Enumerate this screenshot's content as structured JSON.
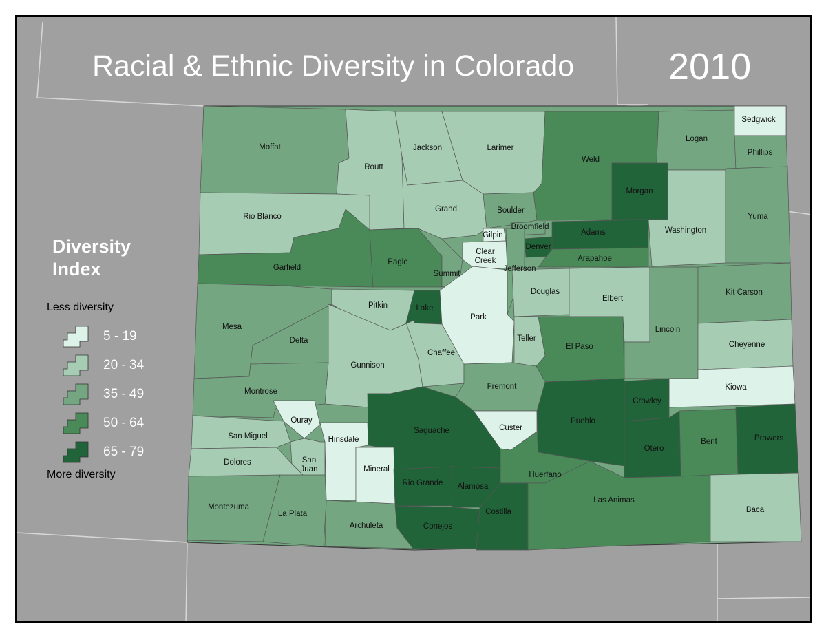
{
  "title": "Racial & Ethnic Diversity in Colorado",
  "year": "2010",
  "legend": {
    "title_line1": "Diversity",
    "title_line2": "Index",
    "less_label": "Less diversity",
    "more_label": "More diversity",
    "classes": [
      {
        "label": "5 - 19",
        "color": "#ddf2e8"
      },
      {
        "label": "20 - 34",
        "color": "#a6cdb3"
      },
      {
        "label": "35 - 49",
        "color": "#74a781"
      },
      {
        "label": "50 - 64",
        "color": "#498a58"
      },
      {
        "label": "65 - 79",
        "color": "#22643a"
      }
    ]
  },
  "colors": {
    "background": "#a0a0a0",
    "state_lines": "#d8d8d8",
    "county_border": "#555555"
  },
  "counties": [
    {
      "name": "Moffat",
      "class": 2
    },
    {
      "name": "Routt",
      "class": 1
    },
    {
      "name": "Jackson",
      "class": 1
    },
    {
      "name": "Larimer",
      "class": 1
    },
    {
      "name": "Weld",
      "class": 3
    },
    {
      "name": "Logan",
      "class": 2
    },
    {
      "name": "Sedgwick",
      "class": 0
    },
    {
      "name": "Phillips",
      "class": 2
    },
    {
      "name": "Rio Blanco",
      "class": 1
    },
    {
      "name": "Grand",
      "class": 1
    },
    {
      "name": "Boulder",
      "class": 2
    },
    {
      "name": "Morgan",
      "class": 4
    },
    {
      "name": "Washington",
      "class": 1
    },
    {
      "name": "Yuma",
      "class": 2
    },
    {
      "name": "Garfield",
      "class": 3
    },
    {
      "name": "Eagle",
      "class": 3
    },
    {
      "name": "Summit",
      "class": 2
    },
    {
      "name": "Gilpin",
      "class": 0
    },
    {
      "name": "Clear Creek",
      "class": 0
    },
    {
      "name": "Broomfield",
      "class": 2
    },
    {
      "name": "Denver",
      "class": 4
    },
    {
      "name": "Adams",
      "class": 4
    },
    {
      "name": "Arapahoe",
      "class": 3
    },
    {
      "name": "Jefferson",
      "class": 2
    },
    {
      "name": "Mesa",
      "class": 2
    },
    {
      "name": "Delta",
      "class": 2
    },
    {
      "name": "Pitkin",
      "class": 1
    },
    {
      "name": "Lake",
      "class": 4
    },
    {
      "name": "Park",
      "class": 0
    },
    {
      "name": "Douglas",
      "class": 1
    },
    {
      "name": "Elbert",
      "class": 1
    },
    {
      "name": "Lincoln",
      "class": 2
    },
    {
      "name": "Kit Carson",
      "class": 2
    },
    {
      "name": "Cheyenne",
      "class": 1
    },
    {
      "name": "Gunnison",
      "class": 1
    },
    {
      "name": "Chaffee",
      "class": 1
    },
    {
      "name": "Teller",
      "class": 1
    },
    {
      "name": "El Paso",
      "class": 3
    },
    {
      "name": "Montrose",
      "class": 2
    },
    {
      "name": "Fremont",
      "class": 2
    },
    {
      "name": "Kiowa",
      "class": 0
    },
    {
      "name": "Crowley",
      "class": 4
    },
    {
      "name": "Ouray",
      "class": 0
    },
    {
      "name": "Hinsdale",
      "class": 0
    },
    {
      "name": "Saguache",
      "class": 4
    },
    {
      "name": "Custer",
      "class": 0
    },
    {
      "name": "Pueblo",
      "class": 4
    },
    {
      "name": "San Miguel",
      "class": 1
    },
    {
      "name": "San Juan",
      "class": 1
    },
    {
      "name": "Mineral",
      "class": 0
    },
    {
      "name": "Otero",
      "class": 4
    },
    {
      "name": "Bent",
      "class": 3
    },
    {
      "name": "Prowers",
      "class": 4
    },
    {
      "name": "Dolores",
      "class": 1
    },
    {
      "name": "Rio Grande",
      "class": 4
    },
    {
      "name": "Alamosa",
      "class": 4
    },
    {
      "name": "Huerfano",
      "class": 3
    },
    {
      "name": "Montezuma",
      "class": 2
    },
    {
      "name": "La Plata",
      "class": 2
    },
    {
      "name": "Archuleta",
      "class": 2
    },
    {
      "name": "Conejos",
      "class": 4
    },
    {
      "name": "Costilla",
      "class": 4
    },
    {
      "name": "Las Animas",
      "class": 3
    },
    {
      "name": "Baca",
      "class": 1
    }
  ]
}
